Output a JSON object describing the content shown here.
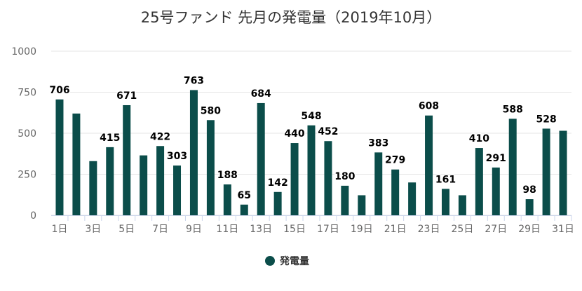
{
  "chart_data": {
    "type": "bar",
    "title": "25号ファンド 先月の発電量（2019年10月）",
    "xlabel": "",
    "ylabel": "",
    "ylim": [
      0,
      1000
    ],
    "yticks": [
      0,
      250,
      500,
      750,
      1000
    ],
    "grid": true,
    "legend_position": "bottom-center",
    "categories": [
      "1日",
      "2日",
      "3日",
      "4日",
      "5日",
      "6日",
      "7日",
      "8日",
      "9日",
      "10日",
      "11日",
      "12日",
      "13日",
      "14日",
      "15日",
      "16日",
      "17日",
      "18日",
      "19日",
      "20日",
      "21日",
      "22日",
      "23日",
      "24日",
      "25日",
      "26日",
      "27日",
      "28日",
      "29日",
      "30日",
      "31日"
    ],
    "tick_labels": [
      "1日",
      "",
      "3日",
      "",
      "5日",
      "",
      "7日",
      "",
      "9日",
      "",
      "11日",
      "",
      "13日",
      "",
      "15日",
      "",
      "17日",
      "",
      "19日",
      "",
      "21日",
      "",
      "23日",
      "",
      "25日",
      "",
      "27日",
      "",
      "29日",
      "",
      "31日"
    ],
    "series": [
      {
        "name": "発電量",
        "color": "#0b4d4a",
        "values": [
          706,
          620,
          330,
          415,
          671,
          365,
          422,
          303,
          763,
          580,
          188,
          65,
          684,
          142,
          440,
          548,
          452,
          180,
          122,
          383,
          279,
          200,
          608,
          161,
          122,
          410,
          291,
          588,
          98,
          528,
          515
        ],
        "labels": [
          "706",
          "",
          "",
          "415",
          "671",
          "",
          "422",
          "303",
          "763",
          "580",
          "188",
          "65",
          "684",
          "142",
          "440",
          "548",
          "452",
          "180",
          "",
          "383",
          "279",
          "",
          "608",
          "161",
          "",
          "410",
          "291",
          "588",
          "98",
          "528",
          ""
        ]
      }
    ]
  }
}
